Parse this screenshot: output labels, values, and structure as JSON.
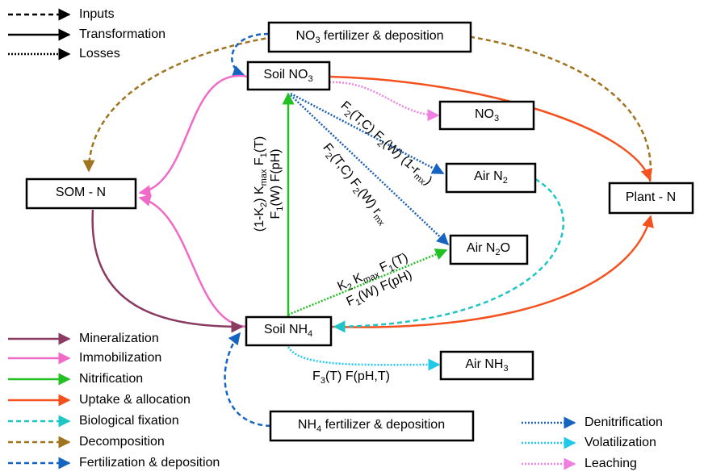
{
  "legend_styles": [
    "Inputs",
    "Transformation",
    "Losses"
  ],
  "legend_processes": [
    "Mineralization",
    "Immobilization",
    "Nitrification",
    "Uptake & allocation",
    "Biological fixation",
    "Decomposition",
    "Fertilization & deposition"
  ],
  "legend_losses": [
    "Denitrification",
    "Volatilization",
    "Leaching"
  ],
  "nodes": [
    [
      "NO",
      "3",
      " fertilizer & deposition"
    ],
    [
      "Soil NO",
      "3"
    ],
    [
      "NO",
      "3"
    ],
    [
      "SOM - N"
    ],
    [
      "Air N",
      "2"
    ],
    [
      "Plant - N"
    ],
    [
      "Air N",
      "2",
      "O"
    ],
    [
      "Soil NH",
      "4"
    ],
    [
      "Air NH",
      "3"
    ],
    [
      "NH",
      "4",
      " fertilizer & deposition"
    ]
  ],
  "equations": [
    [
      "(1-K",
      "2",
      ") K",
      "max",
      " F",
      "1",
      "(T)"
    ],
    [
      "F",
      "1",
      "(W) F(pH)"
    ],
    [
      "F",
      "2",
      "(T,C) F",
      "2",
      "(W) (1-r",
      "mx",
      ")"
    ],
    [
      "F",
      "2",
      "(T,C) F",
      "2",
      "(W) r",
      "mx"
    ],
    [
      "K",
      "2",
      " K",
      "max",
      " F",
      "1",
      "(T)"
    ],
    [
      "F",
      "1",
      "(W) F(pH)"
    ],
    [
      "F",
      "3",
      "(T) F(pH,T)"
    ]
  ]
}
